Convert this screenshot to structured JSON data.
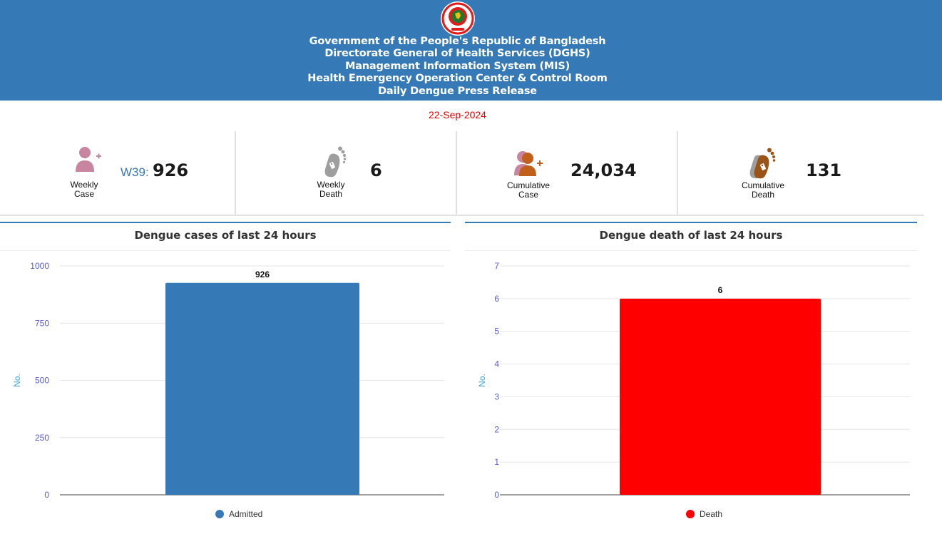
{
  "header": {
    "lines": [
      "Government of the People's Republic of Bangladesh",
      "Directorate General of Health Services (DGHS)",
      "Management Information System (MIS)",
      "Health Emergency Operation Center & Control Room",
      "Daily Dengue Press Release"
    ],
    "date": "22-Sep-2024"
  },
  "stats": {
    "weekly_case": {
      "label_line1": "Weekly",
      "label_line2": "Case",
      "week": "W39:",
      "value": "926",
      "icon": "person-plus-icon"
    },
    "weekly_death": {
      "label_line1": "Weekly",
      "label_line2": "Death",
      "value": "6",
      "icon": "foot-tag-icon"
    },
    "cumulative_case": {
      "label_line1": "Cumulative",
      "label_line2": "Case",
      "value": "24,034",
      "icon": "people-plus-icon"
    },
    "cumulative_death": {
      "label_line1": "Cumulative",
      "label_line2": "Death",
      "value": "131",
      "icon": "foot-tag-icon"
    }
  },
  "colors": {
    "header_bg": "#357ab7",
    "admitted_bar": "#357ab7",
    "death_bar": "#ff0000",
    "date_text": "#e50000"
  },
  "chart_data": [
    {
      "type": "bar",
      "title": "Dengue cases of last 24 hours",
      "ylabel": "No.",
      "xlabel": "",
      "ylim": [
        0,
        1000
      ],
      "yticks": [
        0,
        250,
        500,
        750,
        1000
      ],
      "grid": true,
      "legend_position": "bottom",
      "series": [
        {
          "name": "Admitted",
          "values": [
            926
          ],
          "color": "#357ab7"
        }
      ]
    },
    {
      "type": "bar",
      "title": "Dengue death of last 24 hours",
      "ylabel": "No.",
      "xlabel": "",
      "ylim": [
        0,
        7
      ],
      "yticks": [
        0,
        1,
        2,
        3,
        4,
        5,
        6,
        7
      ],
      "grid": true,
      "legend_position": "bottom",
      "series": [
        {
          "name": "Death",
          "values": [
            6
          ],
          "color": "#ff0000"
        }
      ]
    }
  ]
}
